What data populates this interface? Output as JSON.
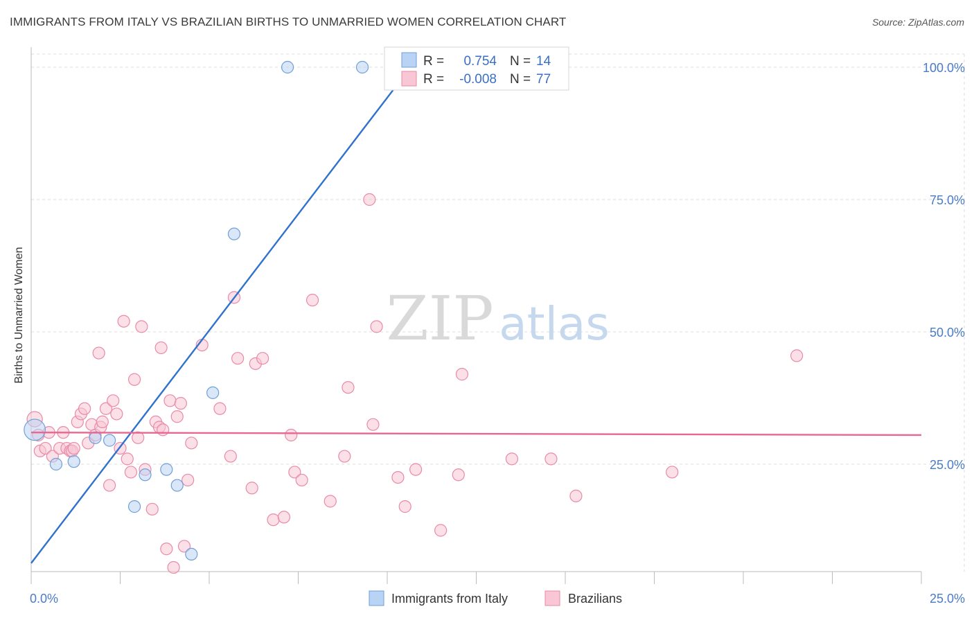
{
  "title": "IMMIGRANTS FROM ITALY VS BRAZILIAN BIRTHS TO UNMARRIED WOMEN CORRELATION CHART",
  "source": "Source: ZipAtlas.com",
  "watermark": {
    "zip": "ZIP",
    "atlas": "atlas"
  },
  "colors": {
    "blue_fill": "#b9d3f4",
    "blue_stroke": "#6f9fd8",
    "blue_line": "#2f72cc",
    "pink_fill": "#f8c6d4",
    "pink_stroke": "#e98aa8",
    "pink_line": "#e8668f",
    "tick_label": "#4a7bc8",
    "grid": "#dcdcdc"
  },
  "legend": {
    "italy": {
      "r_label": "R =",
      "r_value": "0.754",
      "n_label": "N =",
      "n_value": "14"
    },
    "brazil": {
      "r_label": "R =",
      "r_value": "-0.008",
      "n_label": "N =",
      "n_value": "77"
    }
  },
  "bottom_legend": {
    "italy": "Immigrants from Italy",
    "brazil": "Brazilians"
  },
  "chart_data": {
    "type": "scatter",
    "ylabel": "Births to Unmarried Women",
    "xlim": [
      0,
      25
    ],
    "ylim": [
      0,
      105
    ],
    "x_tick_labels": [
      "0.0%",
      "25.0%"
    ],
    "y_ticks": [
      25,
      50,
      75,
      100
    ],
    "y_tick_labels": [
      "25.0%",
      "50.0%",
      "75.0%",
      "100.0%"
    ],
    "grid": true,
    "series": [
      {
        "name": "Immigrants from Italy",
        "color": "blue",
        "trend": {
          "x0": 0,
          "y0": 6.3,
          "x1": 10.2,
          "y1": 96
        },
        "points": [
          [
            0.1,
            31.5,
            1.8
          ],
          [
            0.7,
            25.0,
            1
          ],
          [
            1.2,
            25.5,
            1
          ],
          [
            1.8,
            30.0,
            1
          ],
          [
            2.2,
            29.5,
            1
          ],
          [
            2.9,
            17.0,
            1
          ],
          [
            3.2,
            23.0,
            1
          ],
          [
            3.8,
            24.0,
            1
          ],
          [
            4.1,
            21.0,
            1
          ],
          [
            4.5,
            8.0,
            1
          ],
          [
            5.1,
            38.5,
            1
          ],
          [
            5.7,
            68.5,
            1
          ],
          [
            7.2,
            100.0,
            1
          ],
          [
            9.3,
            100.0,
            1
          ]
        ]
      },
      {
        "name": "Brazilians",
        "color": "pink",
        "trend": {
          "x0": 0,
          "y0": 31.0,
          "x1": 25,
          "y1": 30.5
        },
        "points": [
          [
            0.1,
            33.5,
            1.3
          ],
          [
            0.2,
            30.5,
            1
          ],
          [
            0.25,
            27.5,
            1
          ],
          [
            0.4,
            28.0,
            1
          ],
          [
            0.5,
            31.0,
            1
          ],
          [
            0.6,
            26.5,
            1
          ],
          [
            0.8,
            28.0,
            1
          ],
          [
            0.9,
            31.0,
            1
          ],
          [
            1.0,
            28.0,
            1
          ],
          [
            1.1,
            27.5,
            1
          ],
          [
            1.15,
            27.5,
            1
          ],
          [
            1.2,
            28.0,
            1
          ],
          [
            1.3,
            33.0,
            1
          ],
          [
            1.4,
            34.5,
            1
          ],
          [
            1.5,
            35.5,
            1
          ],
          [
            1.6,
            29.0,
            1
          ],
          [
            1.7,
            32.5,
            1
          ],
          [
            1.8,
            30.5,
            1
          ],
          [
            1.9,
            46.0,
            1
          ],
          [
            1.95,
            32.0,
            1
          ],
          [
            2.0,
            33.0,
            1
          ],
          [
            2.1,
            35.5,
            1
          ],
          [
            2.2,
            21.0,
            1
          ],
          [
            2.3,
            37.0,
            1
          ],
          [
            2.4,
            34.5,
            1
          ],
          [
            2.5,
            28.0,
            1
          ],
          [
            2.6,
            52.0,
            1
          ],
          [
            2.7,
            26.0,
            1
          ],
          [
            2.8,
            23.5,
            1
          ],
          [
            2.9,
            41.0,
            1
          ],
          [
            3.0,
            30.0,
            1
          ],
          [
            3.1,
            51.0,
            1
          ],
          [
            3.2,
            24.0,
            1
          ],
          [
            3.4,
            16.5,
            1
          ],
          [
            3.5,
            33.0,
            1
          ],
          [
            3.6,
            32.0,
            1
          ],
          [
            3.65,
            47.0,
            1
          ],
          [
            3.7,
            31.5,
            1
          ],
          [
            3.8,
            9.0,
            1
          ],
          [
            3.9,
            37.0,
            1
          ],
          [
            4.0,
            5.5,
            1
          ],
          [
            4.1,
            34.0,
            1
          ],
          [
            4.2,
            36.5,
            1
          ],
          [
            4.3,
            9.5,
            1
          ],
          [
            4.4,
            22.0,
            1
          ],
          [
            4.5,
            29.0,
            1
          ],
          [
            4.8,
            47.5,
            1
          ],
          [
            5.3,
            35.5,
            1
          ],
          [
            5.6,
            26.5,
            1
          ],
          [
            5.7,
            56.5,
            1
          ],
          [
            5.8,
            45.0,
            1
          ],
          [
            6.2,
            20.5,
            1
          ],
          [
            6.3,
            44.0,
            1
          ],
          [
            6.5,
            45.0,
            1
          ],
          [
            6.8,
            14.5,
            1
          ],
          [
            7.1,
            15.0,
            1
          ],
          [
            7.3,
            30.5,
            1
          ],
          [
            7.4,
            23.5,
            1
          ],
          [
            7.6,
            22.0,
            1
          ],
          [
            7.9,
            56.0,
            1
          ],
          [
            8.4,
            18.0,
            1
          ],
          [
            8.8,
            26.5,
            1
          ],
          [
            8.9,
            39.5,
            1
          ],
          [
            9.5,
            75.0,
            1
          ],
          [
            9.6,
            32.5,
            1
          ],
          [
            9.7,
            51.0,
            1
          ],
          [
            10.3,
            22.5,
            1
          ],
          [
            10.5,
            17.0,
            1
          ],
          [
            10.8,
            24.0,
            1
          ],
          [
            11.5,
            12.5,
            1
          ],
          [
            12.0,
            23.0,
            1
          ],
          [
            12.1,
            42.0,
            1
          ],
          [
            13.5,
            26.0,
            1
          ],
          [
            14.6,
            26.0,
            1
          ],
          [
            15.3,
            19.0,
            1
          ],
          [
            18.0,
            23.5,
            1
          ],
          [
            21.5,
            45.5,
            1
          ]
        ]
      }
    ]
  }
}
